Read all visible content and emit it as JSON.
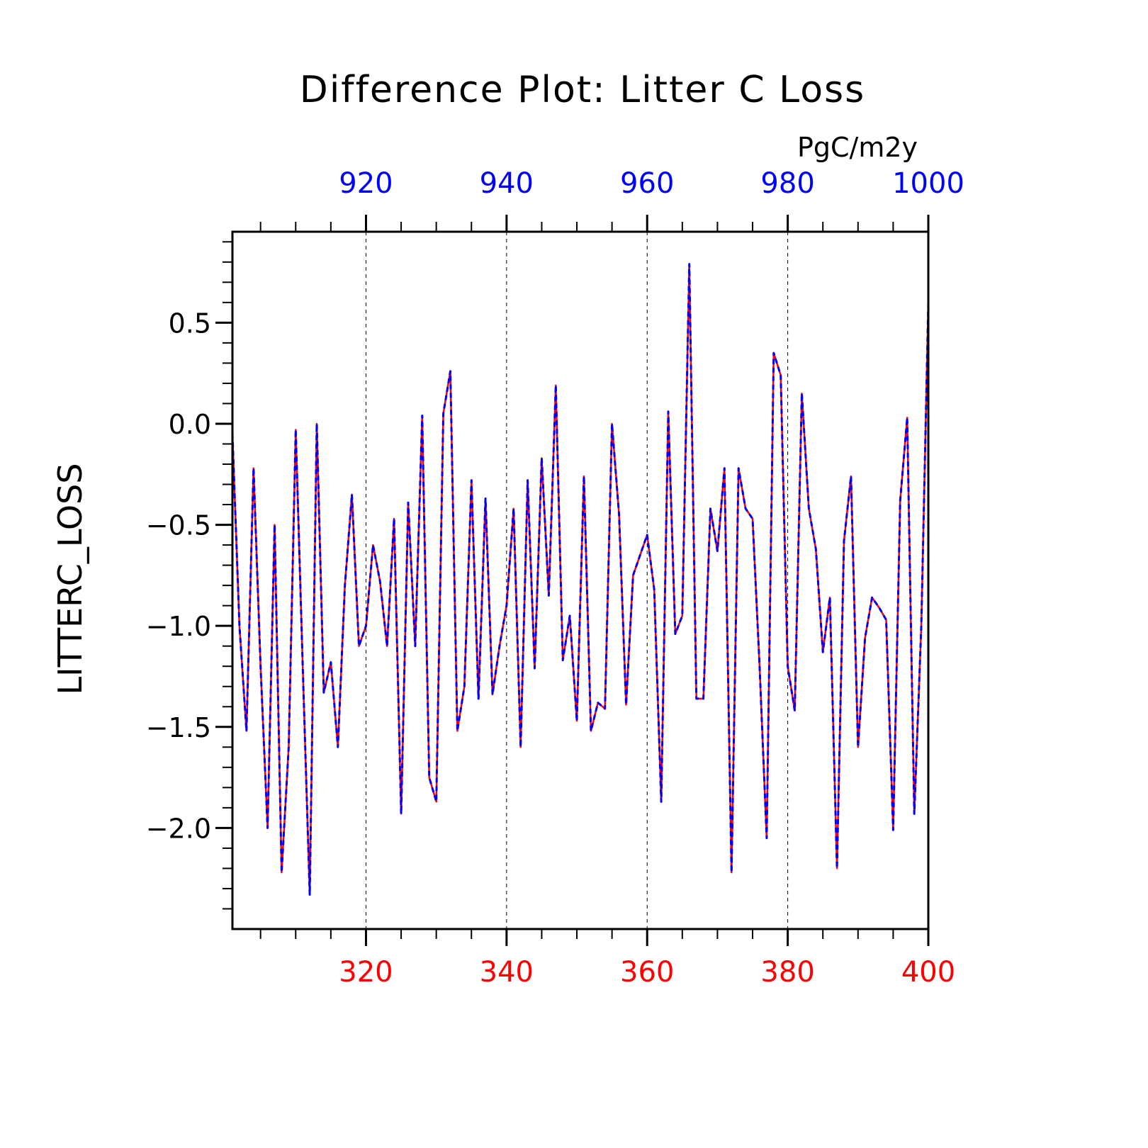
{
  "chart_data": {
    "type": "line",
    "title": "Difference Plot: Litter C Loss",
    "units_label": "PgC/m2y",
    "ylabel": "LITTERC_LOSS",
    "xlabel": "",
    "xlim": [
      301,
      400
    ],
    "ylim": [
      -2.5,
      0.95
    ],
    "top_axis_offset": 600,
    "yticks": [
      -2.0,
      -1.5,
      -1.0,
      -0.5,
      0.0,
      0.5
    ],
    "ytick_labels": [
      "−2.0",
      "−1.5",
      "−1.0",
      "−0.5",
      "0.0",
      "0.5"
    ],
    "xticks_bottom": [
      320,
      340,
      360,
      380,
      400
    ],
    "xticks_bottom_labels": [
      "320",
      "340",
      "360",
      "380",
      "400"
    ],
    "xticks_top_labels": [
      "920",
      "940",
      "960",
      "980",
      "1000"
    ],
    "vertical_grid_at": [
      320,
      340,
      360,
      380
    ],
    "colors": {
      "bottom_axis": "#ff0000",
      "top_axis": "#0000ff",
      "line_a": "#ff0000",
      "line_b": "#0000ff",
      "axes": "#000000"
    },
    "x": [
      301,
      302,
      303,
      304,
      305,
      306,
      307,
      308,
      309,
      310,
      311,
      312,
      313,
      314,
      315,
      316,
      317,
      318,
      319,
      320,
      321,
      322,
      323,
      324,
      325,
      326,
      327,
      328,
      329,
      330,
      331,
      332,
      333,
      334,
      335,
      336,
      337,
      338,
      339,
      340,
      341,
      342,
      343,
      344,
      345,
      346,
      347,
      348,
      349,
      350,
      351,
      352,
      353,
      354,
      355,
      356,
      357,
      358,
      359,
      360,
      361,
      362,
      363,
      364,
      365,
      366,
      367,
      368,
      369,
      370,
      371,
      372,
      373,
      374,
      375,
      376,
      377,
      378,
      379,
      380,
      381,
      382,
      383,
      384,
      385,
      386,
      387,
      388,
      389,
      390,
      391,
      392,
      393,
      394,
      395,
      396,
      397,
      398,
      399,
      400
    ],
    "series": [
      {
        "values": [
          -0.05,
          -1.0,
          -1.52,
          -0.22,
          -1.2,
          -2.0,
          -0.5,
          -2.22,
          -1.6,
          -0.03,
          -1.2,
          -2.33,
          0.0,
          -1.33,
          -1.18,
          -1.6,
          -0.8,
          -0.35,
          -1.1,
          -1.0,
          -0.6,
          -0.78,
          -1.1,
          -0.47,
          -1.93,
          -0.39,
          -1.1,
          0.04,
          -1.75,
          -1.87,
          0.05,
          0.26,
          -1.52,
          -1.3,
          -0.28,
          -1.36,
          -0.37,
          -1.34,
          -1.1,
          -0.9,
          -0.42,
          -1.6,
          -0.28,
          -1.21,
          -0.17,
          -0.85,
          0.19,
          -1.17,
          -0.95,
          -1.47,
          -0.26,
          -1.52,
          -1.38,
          -1.41,
          0.0,
          -0.45,
          -1.39,
          -0.75,
          -0.65,
          -0.55,
          -0.82,
          -1.87,
          0.06,
          -1.04,
          -0.95,
          0.79,
          -1.36,
          -1.36,
          -0.42,
          -0.63,
          -0.22,
          -2.22,
          -0.22,
          -0.42,
          -0.47,
          -1.2,
          -2.05,
          0.35,
          0.24,
          -1.2,
          -1.42,
          0.15,
          -0.42,
          -0.62,
          -1.13,
          -0.86,
          -2.2,
          -0.58,
          -0.26,
          -1.6,
          -1.06,
          -0.86,
          -0.91,
          -0.97,
          -2.01,
          -0.38,
          0.03,
          -1.93,
          -1.0,
          0.6
        ]
      }
    ]
  }
}
